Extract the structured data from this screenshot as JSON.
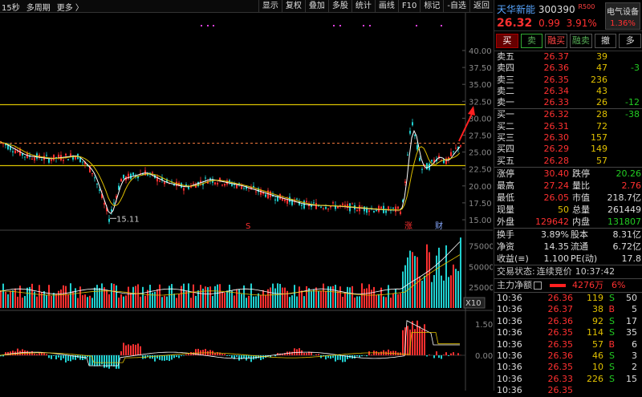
{
  "topbar": {
    "left": [
      "15秒",
      "多周期",
      "更多 〉"
    ],
    "buttons": [
      "显示",
      "复权",
      "叠加",
      "多股",
      "统计",
      "画线",
      "F10",
      "标记",
      "-自选",
      "返回"
    ]
  },
  "stock": {
    "name": "天华新能",
    "code": "300390",
    "tag": "R500",
    "price": "26.32",
    "change": "0.99",
    "pct": "3.91%",
    "sector": "电气设备",
    "sector_pct": "1.36%"
  },
  "trade_buttons": [
    "买",
    "卖",
    "融买",
    "融卖",
    "撤",
    "多"
  ],
  "asks": [
    {
      "label": "卖五",
      "price": "26.37",
      "vol": "39",
      "chg": ""
    },
    {
      "label": "卖四",
      "price": "26.36",
      "vol": "47",
      "chg": "-3"
    },
    {
      "label": "卖三",
      "price": "26.35",
      "vol": "236",
      "chg": ""
    },
    {
      "label": "卖二",
      "price": "26.34",
      "vol": "43",
      "chg": ""
    },
    {
      "label": "卖一",
      "price": "26.33",
      "vol": "26",
      "chg": "-12"
    }
  ],
  "bids": [
    {
      "label": "买一",
      "price": "26.32",
      "vol": "28",
      "chg": "-38"
    },
    {
      "label": "买二",
      "price": "26.31",
      "vol": "72",
      "chg": ""
    },
    {
      "label": "买三",
      "price": "26.30",
      "vol": "157",
      "chg": ""
    },
    {
      "label": "买四",
      "price": "26.29",
      "vol": "149",
      "chg": ""
    },
    {
      "label": "买五",
      "price": "26.28",
      "vol": "57",
      "chg": ""
    }
  ],
  "stats": [
    {
      "k1": "涨停",
      "v1": "30.40",
      "c1": "red",
      "k2": "跌停",
      "v2": "20.26",
      "c2": "green"
    },
    {
      "k1": "最高",
      "v1": "27.24",
      "c1": "red",
      "k2": "量比",
      "v2": "2.76",
      "c2": "red"
    },
    {
      "k1": "最低",
      "v1": "26.05",
      "c1": "red",
      "k2": "市值",
      "v2": "218.7亿",
      "c2": "white"
    },
    {
      "k1": "现量",
      "v1": "50",
      "c1": "yel",
      "k2": "总量",
      "v2": "261449",
      "c2": "white"
    },
    {
      "k1": "外盘",
      "v1": "129642",
      "c1": "red",
      "k2": "内盘",
      "v2": "131807",
      "c2": "green"
    }
  ],
  "stats2": [
    {
      "k1": "换手",
      "v1": "3.89%",
      "k2": "股本",
      "v2": "8.31亿"
    },
    {
      "k1": "净资",
      "v1": "14.35",
      "k2": "流通",
      "v2": "6.72亿"
    },
    {
      "k1": "收益(≡)",
      "v1": "1.100",
      "k2": "PE(动)",
      "v2": "17.8"
    }
  ],
  "status": {
    "label": "交易状态:",
    "value": "连续竞价",
    "time": "10:37:42"
  },
  "netflow": {
    "label": "主力净额",
    "value": "4276万",
    "pct": "6%"
  },
  "ticks": [
    {
      "t": "10:36",
      "p": "26.36",
      "v": "119",
      "d": "S",
      "n": "50"
    },
    {
      "t": "10:36",
      "p": "26.37",
      "v": "38",
      "d": "B",
      "n": "5"
    },
    {
      "t": "10:36",
      "p": "26.36",
      "v": "92",
      "d": "S",
      "n": "17"
    },
    {
      "t": "10:36",
      "p": "26.35",
      "v": "114",
      "d": "S",
      "n": "35"
    },
    {
      "t": "10:36",
      "p": "26.35",
      "v": "57",
      "d": "B",
      "n": "6"
    },
    {
      "t": "10:36",
      "p": "26.36",
      "v": "46",
      "d": "S",
      "n": "3"
    },
    {
      "t": "10:36",
      "p": "26.35",
      "v": "10",
      "d": "S",
      "n": "2"
    },
    {
      "t": "10:36",
      "p": "26.33",
      "v": "226",
      "d": "S",
      "n": "15"
    },
    {
      "t": "10:36",
      "p": "26.35",
      "v": "",
      "d": "",
      "n": ""
    }
  ],
  "chart": {
    "price_axis": [
      "40.00",
      "37.50",
      "35.00",
      "32.50",
      "30.00",
      "27.50",
      "25.00",
      "22.50",
      "20.00",
      "17.50",
      "15.00"
    ],
    "low_label": "15.11",
    "markers": [
      "S",
      "涨",
      "财"
    ],
    "vol_axis": [
      "75000",
      "50000",
      "25000"
    ],
    "vol_unit": "X10",
    "macd_axis": [
      "1.50",
      "0.00"
    ]
  }
}
